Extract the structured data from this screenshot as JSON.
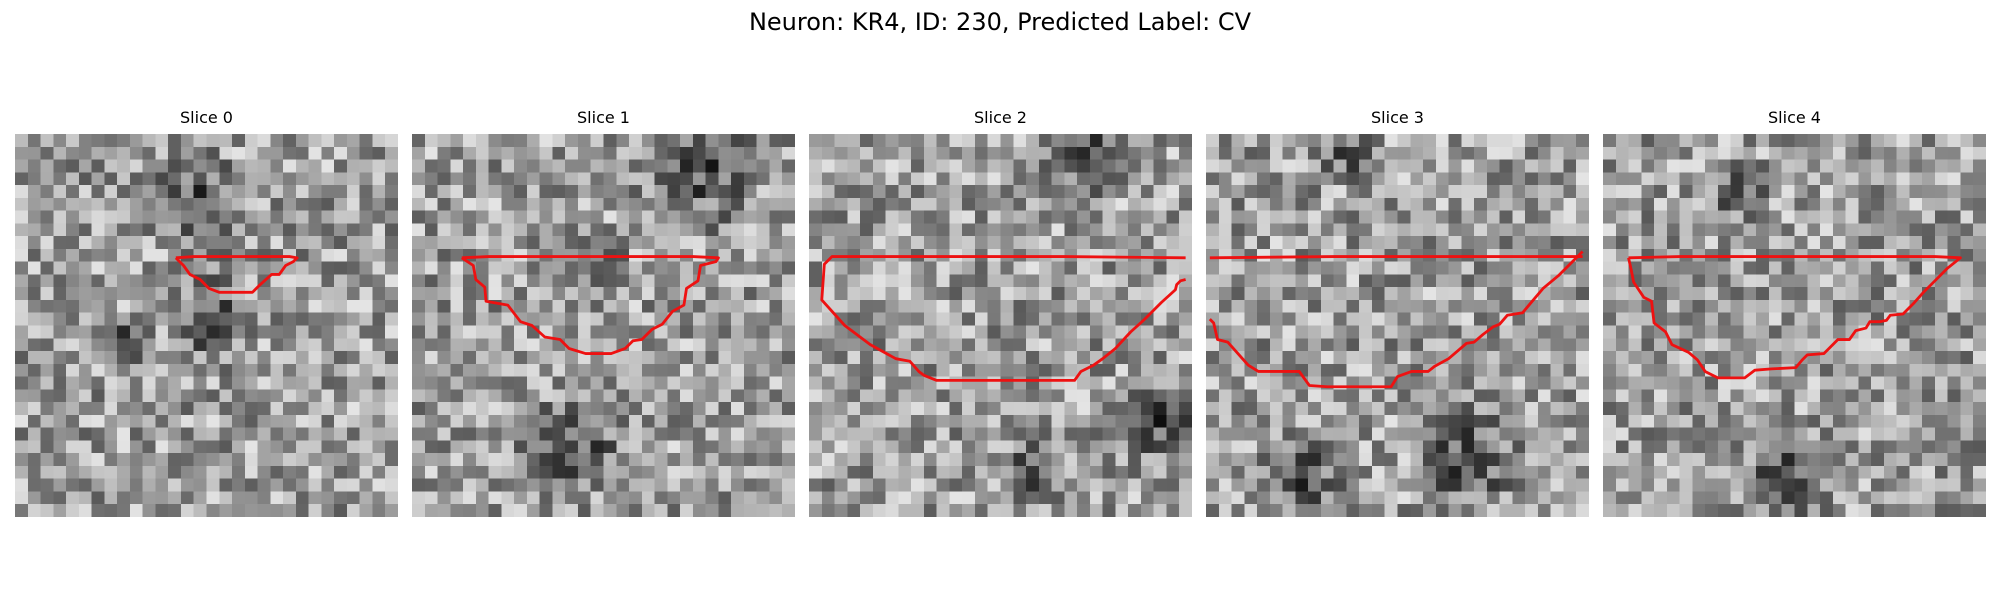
{
  "figure": {
    "title": "Neuron: KR4, ID: 230, Predicted Label: CV",
    "contour_color": "#ee1111",
    "colormap": "gray",
    "grid_size": 30,
    "slices": [
      {
        "label": "Slice 0",
        "contour": [
          [
            12.6,
            9.7
          ],
          [
            13.2,
            10.3
          ],
          [
            13.7,
            11.0
          ],
          [
            14.5,
            11.4
          ],
          [
            15.2,
            12.1
          ],
          [
            16.0,
            12.4
          ],
          [
            17.4,
            12.4
          ],
          [
            18.6,
            12.4
          ],
          [
            19.2,
            11.8
          ],
          [
            20.1,
            11.0
          ],
          [
            20.7,
            11.0
          ],
          [
            21.2,
            10.3
          ],
          [
            21.8,
            10.0
          ],
          [
            22.1,
            9.7
          ],
          [
            21.5,
            9.6
          ],
          [
            20.3,
            9.6
          ],
          [
            18.0,
            9.6
          ],
          [
            15.8,
            9.6
          ],
          [
            14.0,
            9.6
          ],
          [
            12.6,
            9.7
          ]
        ]
      },
      {
        "label": "Slice 1",
        "contour": [
          [
            3.9,
            9.7
          ],
          [
            4.8,
            10.3
          ],
          [
            5.0,
            11.4
          ],
          [
            5.7,
            12.0
          ],
          [
            5.8,
            13.1
          ],
          [
            7.5,
            13.4
          ],
          [
            8.5,
            14.7
          ],
          [
            9.4,
            15.0
          ],
          [
            10.4,
            15.9
          ],
          [
            11.6,
            16.1
          ],
          [
            12.3,
            16.8
          ],
          [
            13.6,
            17.2
          ],
          [
            14.8,
            17.2
          ],
          [
            15.6,
            17.2
          ],
          [
            16.7,
            16.8
          ],
          [
            17.3,
            16.2
          ],
          [
            18.0,
            16.1
          ],
          [
            18.8,
            15.3
          ],
          [
            19.6,
            14.9
          ],
          [
            20.4,
            13.9
          ],
          [
            21.3,
            13.4
          ],
          [
            21.5,
            12.1
          ],
          [
            22.4,
            11.5
          ],
          [
            22.6,
            10.3
          ],
          [
            23.8,
            10.0
          ],
          [
            24.0,
            9.7
          ],
          [
            22.0,
            9.6
          ],
          [
            18.0,
            9.6
          ],
          [
            14.0,
            9.6
          ],
          [
            10.0,
            9.6
          ],
          [
            6.0,
            9.6
          ],
          [
            3.9,
            9.7
          ]
        ]
      },
      {
        "label": "Slice 2",
        "contour": [
          [
            29.5,
            9.7
          ],
          [
            20.0,
            9.6
          ],
          [
            10.0,
            9.6
          ],
          [
            1.8,
            9.6
          ],
          [
            1.2,
            10.2
          ],
          [
            1.0,
            13.0
          ],
          [
            2.8,
            15.0
          ],
          [
            4.8,
            16.5
          ],
          [
            6.8,
            17.6
          ],
          [
            7.9,
            17.8
          ],
          [
            8.6,
            18.6
          ],
          [
            9.0,
            18.9
          ],
          [
            10.0,
            19.3
          ],
          [
            13.0,
            19.3
          ],
          [
            16.0,
            19.3
          ],
          [
            20.8,
            19.3
          ],
          [
            21.3,
            18.6
          ],
          [
            22.3,
            18.1
          ],
          [
            23.0,
            17.6
          ],
          [
            24.0,
            16.8
          ],
          [
            25.2,
            15.5
          ],
          [
            26.3,
            14.5
          ],
          [
            27.6,
            13.2
          ],
          [
            28.7,
            12.2
          ],
          [
            28.8,
            11.8
          ],
          [
            29.1,
            11.5
          ],
          [
            29.5,
            11.4
          ]
        ]
      },
      {
        "label": "Slice 3",
        "contour": [
          [
            0.3,
            9.7
          ],
          [
            10.0,
            9.6
          ],
          [
            20.0,
            9.6
          ],
          [
            29.5,
            9.6
          ],
          [
            0.3,
            14.5
          ],
          [
            0.6,
            14.8
          ],
          [
            0.9,
            16.1
          ],
          [
            1.7,
            16.3
          ],
          [
            3.3,
            18.1
          ],
          [
            4.1,
            18.6
          ],
          [
            6.0,
            18.6
          ],
          [
            7.3,
            18.6
          ],
          [
            8.1,
            19.7
          ],
          [
            9.5,
            19.8
          ],
          [
            11.5,
            19.8
          ],
          [
            14.5,
            19.8
          ],
          [
            15.0,
            19.0
          ],
          [
            16.1,
            18.6
          ],
          [
            17.4,
            18.6
          ],
          [
            17.9,
            18.2
          ],
          [
            19.0,
            17.6
          ],
          [
            19.7,
            17.0
          ],
          [
            20.4,
            16.4
          ],
          [
            21.0,
            16.3
          ],
          [
            21.7,
            15.7
          ],
          [
            22.5,
            15.1
          ],
          [
            23.0,
            14.9
          ],
          [
            23.6,
            14.2
          ],
          [
            24.8,
            14.0
          ],
          [
            25.3,
            13.4
          ],
          [
            26.4,
            12.1
          ],
          [
            27.6,
            11.1
          ],
          [
            28.9,
            9.8
          ],
          [
            29.5,
            9.2
          ]
        ]
      },
      {
        "label": "Slice 4",
        "contour": [
          [
            2.0,
            9.7
          ],
          [
            2.2,
            10.6
          ],
          [
            2.4,
            11.6
          ],
          [
            3.2,
            12.8
          ],
          [
            3.8,
            13.1
          ],
          [
            4.0,
            14.8
          ],
          [
            4.9,
            15.5
          ],
          [
            5.4,
            16.5
          ],
          [
            6.7,
            17.1
          ],
          [
            7.4,
            17.7
          ],
          [
            8.0,
            18.6
          ],
          [
            9.0,
            19.1
          ],
          [
            10.2,
            19.1
          ],
          [
            11.1,
            19.1
          ],
          [
            11.9,
            18.5
          ],
          [
            13.2,
            18.4
          ],
          [
            15.1,
            18.3
          ],
          [
            15.6,
            17.7
          ],
          [
            16.0,
            17.3
          ],
          [
            17.3,
            17.2
          ],
          [
            18.1,
            16.4
          ],
          [
            18.4,
            16.1
          ],
          [
            19.3,
            16.1
          ],
          [
            19.8,
            15.4
          ],
          [
            20.6,
            15.2
          ],
          [
            20.9,
            14.7
          ],
          [
            21.7,
            14.7
          ],
          [
            22.2,
            14.6
          ],
          [
            22.5,
            14.2
          ],
          [
            23.5,
            14.1
          ],
          [
            24.3,
            13.3
          ],
          [
            25.1,
            12.4
          ],
          [
            26.0,
            11.5
          ],
          [
            27.0,
            10.5
          ],
          [
            28.0,
            9.7
          ],
          [
            26.0,
            9.6
          ],
          [
            20.0,
            9.6
          ],
          [
            12.0,
            9.6
          ],
          [
            6.0,
            9.6
          ],
          [
            2.0,
            9.7
          ]
        ]
      }
    ]
  }
}
